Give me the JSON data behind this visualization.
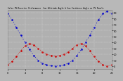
{
  "title": "Solar PV/Inverter Performance  Sun Altitude Angle & Sun Incidence Angle on PV Panels",
  "x_values": [
    0,
    1,
    2,
    3,
    4,
    5,
    6,
    7,
    8,
    9,
    10,
    11,
    12,
    13,
    14,
    15,
    16,
    17,
    18,
    19,
    20,
    21,
    22,
    23,
    24
  ],
  "blue_y": [
    88,
    78,
    65,
    52,
    40,
    28,
    18,
    10,
    5,
    2,
    1,
    0,
    1,
    2,
    5,
    10,
    18,
    28,
    40,
    52,
    65,
    78,
    88,
    92,
    88
  ],
  "red_y": [
    2,
    8,
    16,
    26,
    34,
    38,
    36,
    30,
    24,
    20,
    18,
    17,
    18,
    20,
    24,
    30,
    36,
    38,
    34,
    26,
    16,
    8,
    2,
    0,
    2
  ],
  "blue_color": "#0000cc",
  "red_color": "#cc0000",
  "bg_color": "#b8b8b8",
  "plot_bg_color": "#b0b0b0",
  "grid_color": "#d8d8d8",
  "ylim": [
    -5,
    95
  ],
  "yticks": [
    0,
    10,
    20,
    30,
    40,
    50,
    60,
    70,
    80,
    90
  ],
  "xlim": [
    0,
    24
  ],
  "xtick_spacing": 4
}
